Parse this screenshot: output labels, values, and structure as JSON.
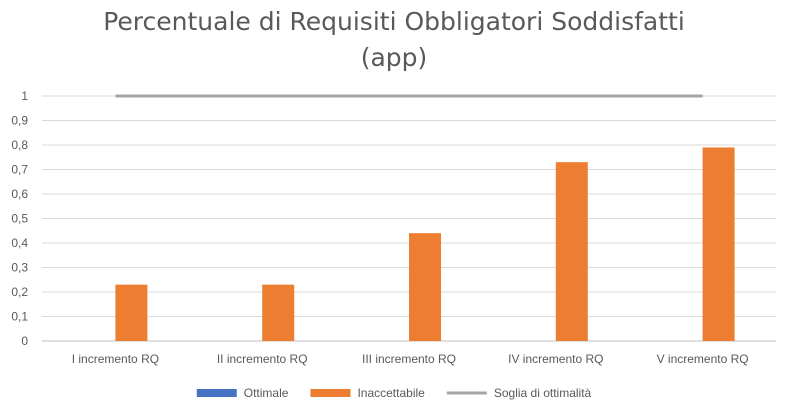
{
  "chart_data": {
    "type": "bar",
    "title_lines": [
      "Percentuale di Requisiti Obbligatori Soddisfatti",
      "(app)"
    ],
    "categories": [
      "I incremento RQ",
      "II incremento RQ",
      "III incremento RQ",
      "IV incremento RQ",
      "V incremento RQ"
    ],
    "series": [
      {
        "name": "Ottimale",
        "kind": "bar",
        "color": "#4472c4",
        "values": [
          0,
          0,
          0,
          0,
          0
        ]
      },
      {
        "name": "Inaccettabile",
        "kind": "bar",
        "color": "#ed7d31",
        "values": [
          0.23,
          0.23,
          0.44,
          0.73,
          0.79
        ]
      },
      {
        "name": "Soglia di ottimalità",
        "kind": "line",
        "color": "#a5a5a5",
        "values": [
          1,
          1,
          1,
          1,
          1
        ]
      }
    ],
    "yticks": [
      "0",
      "0,1",
      "0,2",
      "0,3",
      "0,4",
      "0,5",
      "0,6",
      "0,7",
      "0,8",
      "0,9",
      "1"
    ],
    "ylim": [
      0,
      1
    ],
    "grid": true,
    "legend_position": "bottom"
  }
}
